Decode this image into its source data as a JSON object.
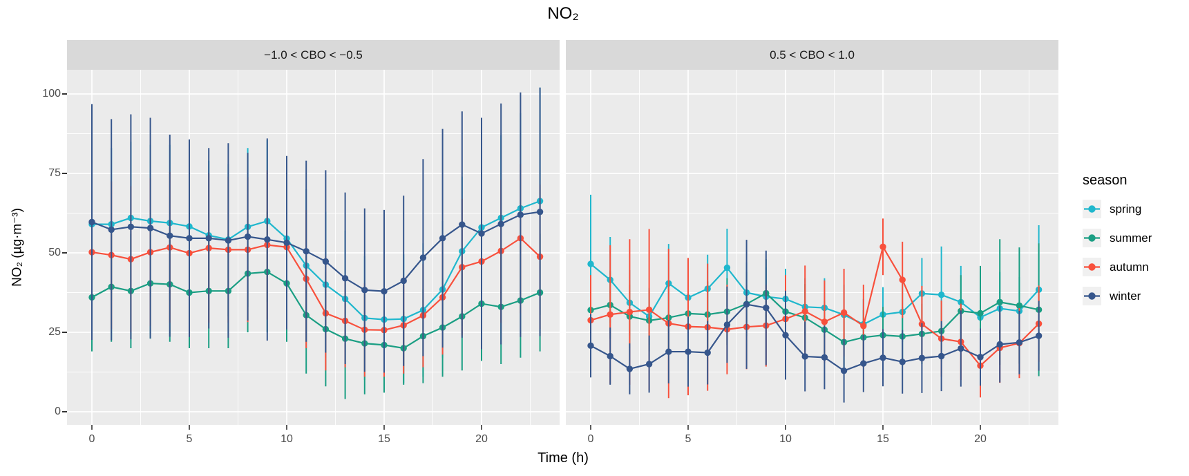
{
  "title": "NO₂",
  "x_axis": {
    "title": "Time (h)"
  },
  "y_axis": {
    "title": "NO₂ (µg·m⁻³)"
  },
  "legend": {
    "title": "season",
    "entries": [
      {
        "label": "spring",
        "color": "#1fb7cd"
      },
      {
        "label": "summer",
        "color": "#1a9e83"
      },
      {
        "label": "autumn",
        "color": "#f8503c"
      },
      {
        "label": "winter",
        "color": "#36568c"
      }
    ]
  },
  "colors": {
    "panel_bg": "#ebebeb",
    "strip_bg": "#d9d9d9",
    "grid": "#ffffff",
    "tick_mark": "#333333",
    "tick_label": "#4d4d4d",
    "legend_key_bg": "#f0f0f0"
  },
  "chart_data": {
    "type": "line",
    "title": "NO₂",
    "xlabel": "Time (h)",
    "ylabel": "NO₂ (µg·m⁻³)",
    "x": [
      0,
      1,
      2,
      3,
      4,
      5,
      6,
      7,
      8,
      9,
      10,
      11,
      12,
      13,
      14,
      15,
      16,
      17,
      18,
      19,
      20,
      21,
      22,
      23
    ],
    "x_ticks": [
      0,
      5,
      10,
      15,
      20
    ],
    "x_minor": [
      2.5,
      7.5,
      12.5,
      17.5,
      22.5
    ],
    "y_ticks": [
      0,
      25,
      50,
      75,
      100
    ],
    "y_minor": [
      12.5,
      37.5,
      62.5,
      87.5
    ],
    "ylim": [
      -4.5,
      108
    ],
    "error_bars": "vertical ranges (mean ± sd)",
    "legend_position": "right",
    "facets": [
      {
        "label": "−1.0 < CBO < −0.5",
        "series": [
          {
            "name": "spring",
            "mean": [
              59,
              59,
              61,
              60,
              59.4,
              58.3,
              55.5,
              54.2,
              58.2,
              60,
              54.5,
              46,
              40,
              35.5,
              29.5,
              29,
              29.2,
              32,
              38.5,
              50.5,
              58,
              61,
              64,
              66.3
            ],
            "lo": [
              36,
              35,
              37,
              36,
              35,
              34,
              32,
              30,
              33,
              34.5,
              29,
              22,
              17,
              14,
              10,
              10,
              9,
              11,
              17,
              27,
              33,
              35,
              34,
              30.5
            ],
            "hi": [
              82,
              83,
              85,
              84,
              84,
              82.5,
              79,
              78,
              83,
              85.5,
              80,
              70,
              63,
              57,
              49,
              48,
              49.5,
              53,
              60,
              74,
              83,
              87,
              94,
              102
            ]
          },
          {
            "name": "summer",
            "mean": [
              36,
              39.3,
              38,
              40.4,
              40.1,
              37.5,
              38,
              38,
              43.5,
              44,
              40.4,
              30.4,
              26,
              23,
              21.5,
              21,
              20,
              23.8,
              26.5,
              30,
              34,
              33,
              35,
              37.5
            ],
            "lo": [
              19,
              22,
              20,
              23,
              22,
              20,
              20,
              20,
              25,
              25,
              22,
              12,
              8,
              4,
              5.5,
              6,
              8.5,
              9,
              11,
              13,
              16,
              15,
              17,
              19
            ],
            "hi": [
              53,
              56.5,
              56,
              58,
              58,
              55,
              56,
              56,
              62,
              63,
              59,
              49,
              44,
              42,
              37.5,
              36,
              31.5,
              38.5,
              42,
              47,
              52,
              51,
              53,
              56
            ]
          },
          {
            "name": "autumn",
            "mean": [
              50.2,
              49.3,
              48,
              50.2,
              51.7,
              49.9,
              51.5,
              51,
              51,
              52.5,
              51.8,
              41.8,
              31,
              28.6,
              25.8,
              25.7,
              27.2,
              30.3,
              36,
              45.5,
              47.3,
              50.6,
              54.6,
              48.8
            ],
            "lo": [
              27,
              26,
              25,
              27,
              28,
              27,
              28,
              28,
              28.2,
              29,
              28,
              20,
              13,
              14,
              11,
              11,
              12,
              14,
              18,
              24,
              26,
              28,
              31,
              26
            ],
            "hi": [
              73,
              72.5,
              71,
              73.5,
              75.5,
              73,
              75,
              74,
              73.8,
              76,
              75.5,
              63.5,
              49,
              43,
              40.5,
              40.5,
              42.5,
              46.5,
              54,
              67,
              68.5,
              73,
              78,
              71.5
            ]
          },
          {
            "name": "winter",
            "mean": [
              59.7,
              57.3,
              58.2,
              57.8,
              55.4,
              54.6,
              54.6,
              53.9,
              55.1,
              54.2,
              53.2,
              50.5,
              47.3,
              42,
              38.3,
              37.9,
              41.2,
              48.5,
              54.6,
              58.9,
              56.1,
              59.1,
              62,
              62.9
            ],
            "lo": [
              22.6,
              22.5,
              22.8,
              23.1,
              23.6,
              23.5,
              26.2,
              23.3,
              28.7,
              22.4,
              25.9,
              22,
              18.6,
              15,
              12.6,
              12.3,
              14.4,
              17.5,
              20.2,
              23.3,
              19.7,
              21.2,
              23.5,
              23.8
            ],
            "hi": [
              96.8,
              92.1,
              93.6,
              92.5,
              87.2,
              85.7,
              83,
              84.5,
              81.5,
              86,
              80.5,
              79,
              76,
              69,
              64,
              63.5,
              68,
              79.5,
              89,
              94.5,
              92.5,
              97,
              100.5,
              102
            ]
          }
        ]
      },
      {
        "label": "0.5 < CBO < 1.0",
        "series": [
          {
            "name": "spring",
            "mean": [
              46.5,
              41.5,
              34.3,
              30,
              40.4,
              35.9,
              38.7,
              45.3,
              37.5,
              36.2,
              35.5,
              33,
              32.7,
              30.5,
              27.5,
              30.6,
              31.4,
              37.2,
              36.8,
              34.5,
              29.7,
              32.5,
              31.7,
              38.4
            ],
            "lo": [
              26.5,
              28,
              24,
              21,
              28,
              26,
              28,
              33,
              28,
              27,
              26,
              24,
              23.4,
              21,
              19.5,
              22,
              22,
              26,
              21.6,
              23.1,
              20,
              21,
              21,
              18.1
            ],
            "hi": [
              68.3,
              55,
              44.6,
              39,
              52.8,
              45.8,
              49.4,
              57.6,
              47,
              45.4,
              45,
              42,
              42,
              40,
              35.5,
              39.2,
              40.8,
              48.4,
              52,
              45.9,
              39.4,
              44,
              42.4,
              58.7
            ]
          },
          {
            "name": "summer",
            "mean": [
              32,
              33.6,
              30,
              28.7,
              29.6,
              30.9,
              30.6,
              31.5,
              33.9,
              37.3,
              31.5,
              29.6,
              25.8,
              21.9,
              23.4,
              24.1,
              23.7,
              24.5,
              25.4,
              31.7,
              31,
              34.5,
              33.4,
              32.1
            ],
            "lo": [
              21,
              23,
              20,
              19,
              19.6,
              21,
              20.2,
              21,
              23.8,
              26.6,
              21,
              19,
              16.6,
              12.8,
              14.8,
              15.2,
              14.4,
              15,
              15.8,
              20.4,
              16.1,
              14.7,
              15.1,
              11.2
            ],
            "hi": [
              43,
              44.2,
              40,
              38.4,
              39.6,
              40.8,
              41,
              42,
              44,
              48,
              42,
              40.2,
              35,
              31,
              32,
              33,
              33,
              34,
              35,
              43,
              45.9,
              54.3,
              51.7,
              53
            ]
          },
          {
            "name": "autumn",
            "mean": [
              28.8,
              30.6,
              31.4,
              32.1,
              27.8,
              26.8,
              26.6,
              25.9,
              26.7,
              27.1,
              29.2,
              31.6,
              28.3,
              31.2,
              27,
              51.9,
              41.5,
              27.6,
              23,
              22,
              14.5,
              20.1,
              21.6,
              27.7
            ],
            "lo": [
              14.6,
              8.8,
              8.5,
              6.7,
              4.3,
              5.2,
              6.6,
              11.8,
              13.4,
              14.2,
              15.4,
              17.2,
              15.3,
              17.4,
              14,
              43,
              29.5,
              15.6,
              11,
              10,
              4.5,
              9.1,
              10.6,
              15.7
            ],
            "hi": [
              43,
              52.4,
              54.3,
              57.5,
              51.3,
              48.4,
              46.6,
              40,
              40,
              40,
              43,
              46,
              41.3,
              45,
              40,
              60.8,
              53.5,
              39.6,
              35,
              34,
              24.5,
              31.1,
              32.6,
              39.7
            ]
          },
          {
            "name": "winter",
            "mean": [
              20.8,
              17.5,
              13.5,
              15,
              18.9,
              18.9,
              18.6,
              27.4,
              33.8,
              32.7,
              24.1,
              17.4,
              17.1,
              12.9,
              15.2,
              17,
              15.7,
              16.9,
              17.5,
              19.9,
              17.2,
              21.2,
              21.8,
              23.9
            ],
            "lo": [
              10.8,
              8.5,
              5.5,
              6,
              8.9,
              7.9,
              8.6,
              15.4,
              13.5,
              14.7,
              10.1,
              6.4,
              7.1,
              2.9,
              6.2,
              8,
              5.7,
              5.9,
              6.5,
              7.9,
              8.2,
              9.2,
              11.8,
              12.9
            ],
            "hi": [
              30.8,
              26.5,
              21.5,
              24,
              28.9,
              29.9,
              28.6,
              39.4,
              54.1,
              50.7,
              38.1,
              28.4,
              27.1,
              22.9,
              24.2,
              26,
              25.7,
              27.9,
              28.5,
              31.9,
              26.2,
              33.2,
              31.8,
              34.9
            ]
          }
        ]
      }
    ]
  }
}
